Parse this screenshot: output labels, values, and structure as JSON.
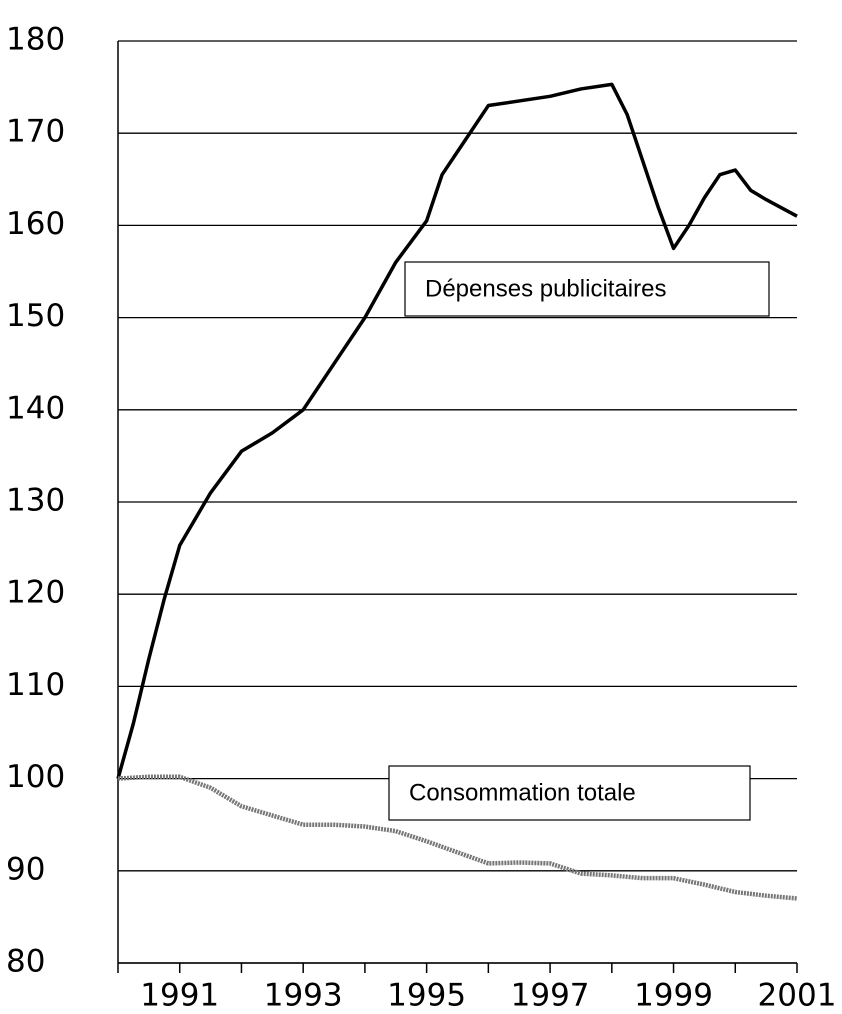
{
  "chart_data": {
    "type": "line",
    "series": [
      {
        "name": "Dépenses publicitaires",
        "color": "#000000",
        "x": [
          1990,
          1990.25,
          1990.5,
          1990.75,
          1991,
          1991.5,
          1992,
          1992.5,
          1993,
          1993.5,
          1994,
          1994.5,
          1995,
          1995.25,
          1995.5,
          1996,
          1996.5,
          1997,
          1997.5,
          1998,
          1998.25,
          1998.5,
          1998.75,
          1999,
          1999.25,
          1999.5,
          1999.75,
          2000,
          2000.25,
          2000.5,
          2001
        ],
        "values": [
          100,
          106,
          113,
          119.5,
          125.3,
          131,
          135.5,
          137.5,
          140,
          145,
          150,
          156,
          160.5,
          165.5,
          168,
          173,
          173.5,
          174,
          174.8,
          175.3,
          172,
          167,
          162,
          157.5,
          160,
          163,
          165.5,
          166,
          163.8,
          162.8,
          161
        ]
      },
      {
        "name": "Consommation totale",
        "color": "#777777",
        "x": [
          1990,
          1990.5,
          1991,
          1991.5,
          1992,
          1992.5,
          1993,
          1993.5,
          1994,
          1994.5,
          1995,
          1995.5,
          1996,
          1996.5,
          1997,
          1997.5,
          1998,
          1998.5,
          1999,
          1999.5,
          2000,
          2000.5,
          2001
        ],
        "values": [
          100,
          100.2,
          100.2,
          99,
          97,
          96,
          95,
          95,
          94.8,
          94.3,
          93.2,
          92,
          90.8,
          90.9,
          90.8,
          89.7,
          89.5,
          89.2,
          89.2,
          88.5,
          87.7,
          87.3,
          87
        ]
      }
    ],
    "xlim": [
      1990,
      2001
    ],
    "xticks": [
      1991,
      1993,
      1995,
      1997,
      1999,
      2001
    ],
    "xminor_ticks": [
      1990,
      1992,
      1994,
      1996,
      1998,
      2000
    ],
    "ylim": [
      80,
      180
    ],
    "yticks": [
      80,
      90,
      100,
      110,
      120,
      130,
      140,
      150,
      160,
      170,
      180
    ],
    "grid": true
  }
}
